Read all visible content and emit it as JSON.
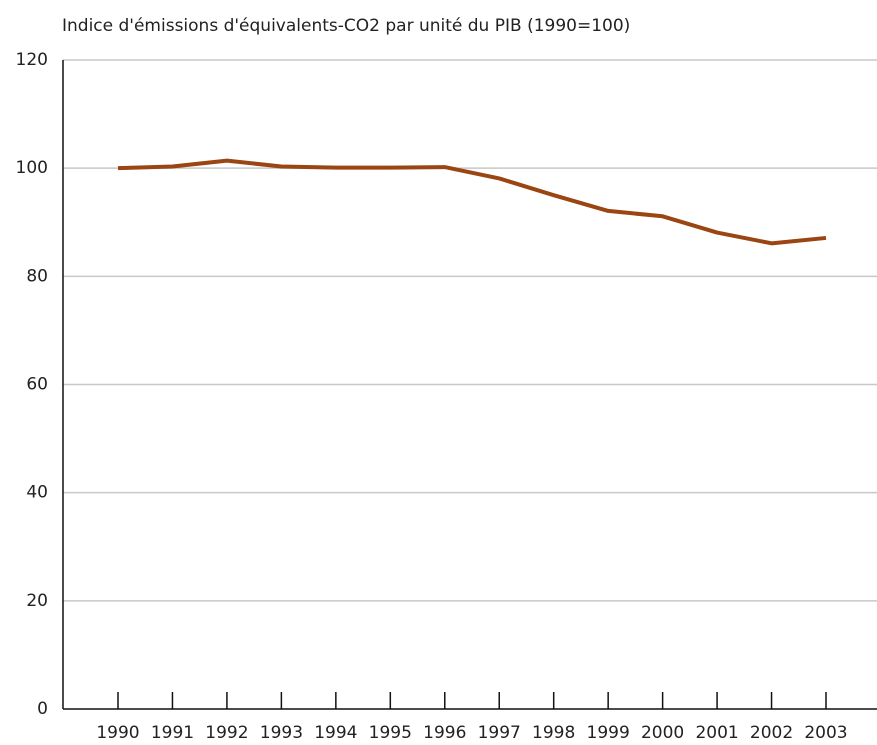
{
  "chart_data": {
    "type": "line",
    "title": "Indice d'émissions d'équivalents-CO2 par unité du PIB (1990=100)",
    "categories": [
      "1990",
      "1991",
      "1992",
      "1993",
      "1994",
      "1995",
      "1996",
      "1997",
      "1998",
      "1999",
      "2000",
      "2001",
      "2002",
      "2003"
    ],
    "series": [
      {
        "color": "#9a4512",
        "values": [
          100,
          100.3,
          101.4,
          100.3,
          100.1,
          100.1,
          100.2,
          98.1,
          95,
          92.1,
          91.1,
          88.1,
          86.1,
          87.1
        ]
      }
    ],
    "ylim": [
      0,
      120
    ],
    "yticks": [
      0,
      20,
      40,
      60,
      80,
      100,
      120
    ],
    "grid": true
  }
}
